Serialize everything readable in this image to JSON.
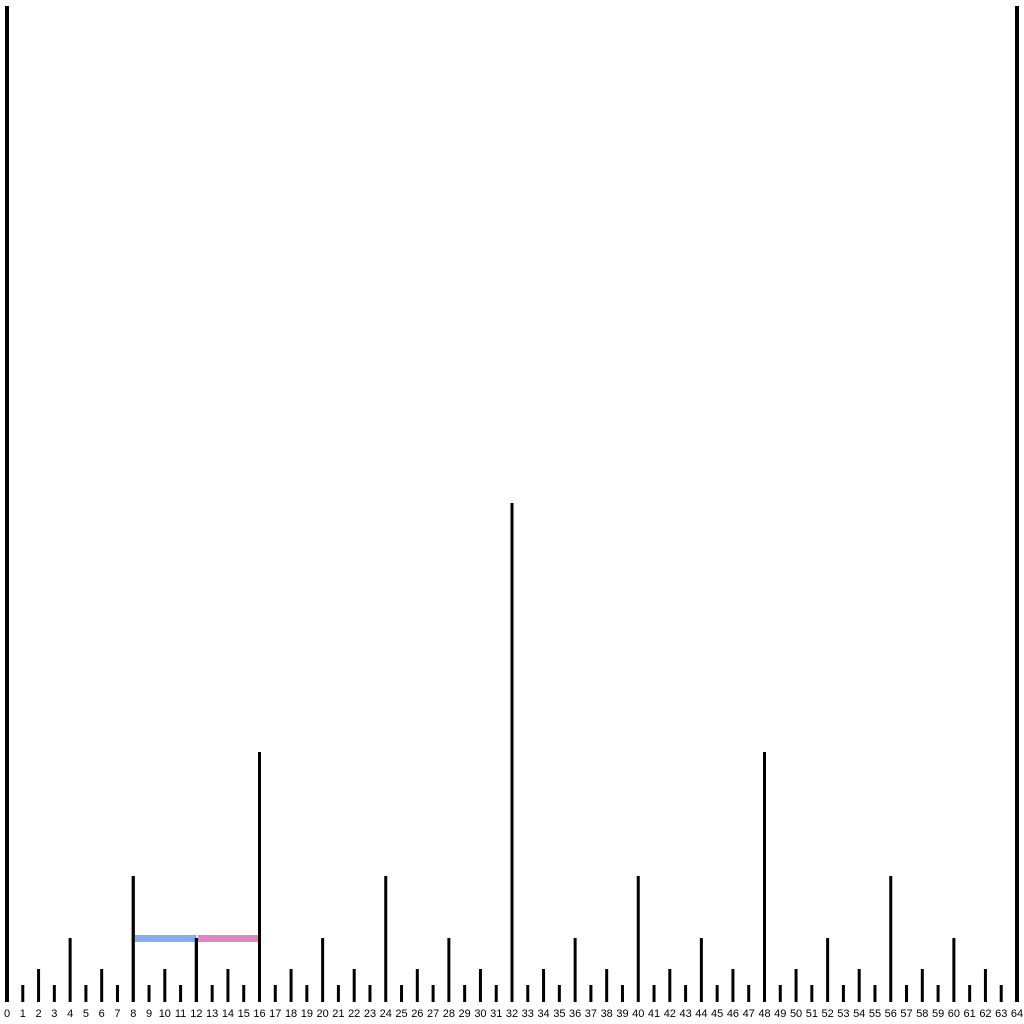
{
  "ruler": {
    "min": 0,
    "max": 64,
    "labels": [
      "0",
      "1",
      "2",
      "3",
      "4",
      "5",
      "6",
      "7",
      "8",
      "9",
      "10",
      "11",
      "12",
      "13",
      "14",
      "15",
      "16",
      "17",
      "18",
      "19",
      "20",
      "21",
      "22",
      "23",
      "24",
      "25",
      "26",
      "27",
      "28",
      "29",
      "30",
      "31",
      "32",
      "33",
      "34",
      "35",
      "36",
      "37",
      "38",
      "39",
      "40",
      "41",
      "42",
      "43",
      "44",
      "45",
      "46",
      "47",
      "48",
      "49",
      "50",
      "51",
      "52",
      "53",
      "54",
      "55",
      "56",
      "57",
      "58",
      "59",
      "60",
      "61",
      "62",
      "63",
      "64"
    ],
    "tick_color": "#000000"
  },
  "highlights": [
    {
      "from": 8,
      "to": 12,
      "color": "#88aee8"
    },
    {
      "from": 12,
      "to": 16,
      "color": "#e087bd"
    }
  ]
}
